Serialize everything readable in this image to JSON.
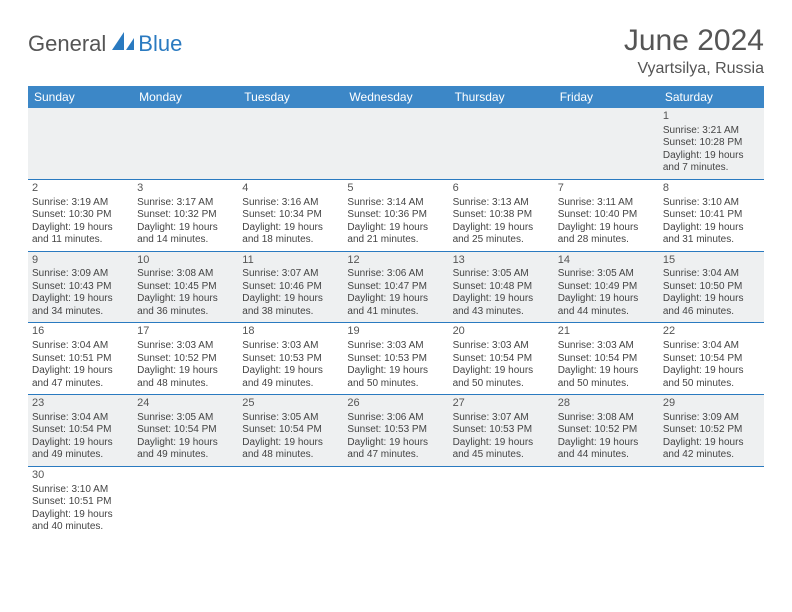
{
  "logo": {
    "text_dark": "General",
    "text_blue": "Blue"
  },
  "title": "June 2024",
  "location": "Vyartsilya, Russia",
  "colors": {
    "header_bg": "#3c87c7",
    "header_text": "#ffffff",
    "row_border": "#2a7ac0",
    "even_row_bg": "#eef0f1",
    "odd_row_bg": "#ffffff",
    "text": "#444444",
    "title_text": "#555555"
  },
  "weekdays": [
    "Sunday",
    "Monday",
    "Tuesday",
    "Wednesday",
    "Thursday",
    "Friday",
    "Saturday"
  ],
  "weeks": [
    {
      "parity": "even",
      "days": [
        null,
        null,
        null,
        null,
        null,
        null,
        {
          "n": "1",
          "sr": "Sunrise: 3:21 AM",
          "ss": "Sunset: 10:28 PM",
          "d1": "Daylight: 19 hours",
          "d2": "and 7 minutes."
        }
      ]
    },
    {
      "parity": "odd",
      "days": [
        {
          "n": "2",
          "sr": "Sunrise: 3:19 AM",
          "ss": "Sunset: 10:30 PM",
          "d1": "Daylight: 19 hours",
          "d2": "and 11 minutes."
        },
        {
          "n": "3",
          "sr": "Sunrise: 3:17 AM",
          "ss": "Sunset: 10:32 PM",
          "d1": "Daylight: 19 hours",
          "d2": "and 14 minutes."
        },
        {
          "n": "4",
          "sr": "Sunrise: 3:16 AM",
          "ss": "Sunset: 10:34 PM",
          "d1": "Daylight: 19 hours",
          "d2": "and 18 minutes."
        },
        {
          "n": "5",
          "sr": "Sunrise: 3:14 AM",
          "ss": "Sunset: 10:36 PM",
          "d1": "Daylight: 19 hours",
          "d2": "and 21 minutes."
        },
        {
          "n": "6",
          "sr": "Sunrise: 3:13 AM",
          "ss": "Sunset: 10:38 PM",
          "d1": "Daylight: 19 hours",
          "d2": "and 25 minutes."
        },
        {
          "n": "7",
          "sr": "Sunrise: 3:11 AM",
          "ss": "Sunset: 10:40 PM",
          "d1": "Daylight: 19 hours",
          "d2": "and 28 minutes."
        },
        {
          "n": "8",
          "sr": "Sunrise: 3:10 AM",
          "ss": "Sunset: 10:41 PM",
          "d1": "Daylight: 19 hours",
          "d2": "and 31 minutes."
        }
      ]
    },
    {
      "parity": "even",
      "days": [
        {
          "n": "9",
          "sr": "Sunrise: 3:09 AM",
          "ss": "Sunset: 10:43 PM",
          "d1": "Daylight: 19 hours",
          "d2": "and 34 minutes."
        },
        {
          "n": "10",
          "sr": "Sunrise: 3:08 AM",
          "ss": "Sunset: 10:45 PM",
          "d1": "Daylight: 19 hours",
          "d2": "and 36 minutes."
        },
        {
          "n": "11",
          "sr": "Sunrise: 3:07 AM",
          "ss": "Sunset: 10:46 PM",
          "d1": "Daylight: 19 hours",
          "d2": "and 38 minutes."
        },
        {
          "n": "12",
          "sr": "Sunrise: 3:06 AM",
          "ss": "Sunset: 10:47 PM",
          "d1": "Daylight: 19 hours",
          "d2": "and 41 minutes."
        },
        {
          "n": "13",
          "sr": "Sunrise: 3:05 AM",
          "ss": "Sunset: 10:48 PM",
          "d1": "Daylight: 19 hours",
          "d2": "and 43 minutes."
        },
        {
          "n": "14",
          "sr": "Sunrise: 3:05 AM",
          "ss": "Sunset: 10:49 PM",
          "d1": "Daylight: 19 hours",
          "d2": "and 44 minutes."
        },
        {
          "n": "15",
          "sr": "Sunrise: 3:04 AM",
          "ss": "Sunset: 10:50 PM",
          "d1": "Daylight: 19 hours",
          "d2": "and 46 minutes."
        }
      ]
    },
    {
      "parity": "odd",
      "days": [
        {
          "n": "16",
          "sr": "Sunrise: 3:04 AM",
          "ss": "Sunset: 10:51 PM",
          "d1": "Daylight: 19 hours",
          "d2": "and 47 minutes."
        },
        {
          "n": "17",
          "sr": "Sunrise: 3:03 AM",
          "ss": "Sunset: 10:52 PM",
          "d1": "Daylight: 19 hours",
          "d2": "and 48 minutes."
        },
        {
          "n": "18",
          "sr": "Sunrise: 3:03 AM",
          "ss": "Sunset: 10:53 PM",
          "d1": "Daylight: 19 hours",
          "d2": "and 49 minutes."
        },
        {
          "n": "19",
          "sr": "Sunrise: 3:03 AM",
          "ss": "Sunset: 10:53 PM",
          "d1": "Daylight: 19 hours",
          "d2": "and 50 minutes."
        },
        {
          "n": "20",
          "sr": "Sunrise: 3:03 AM",
          "ss": "Sunset: 10:54 PM",
          "d1": "Daylight: 19 hours",
          "d2": "and 50 minutes."
        },
        {
          "n": "21",
          "sr": "Sunrise: 3:03 AM",
          "ss": "Sunset: 10:54 PM",
          "d1": "Daylight: 19 hours",
          "d2": "and 50 minutes."
        },
        {
          "n": "22",
          "sr": "Sunrise: 3:04 AM",
          "ss": "Sunset: 10:54 PM",
          "d1": "Daylight: 19 hours",
          "d2": "and 50 minutes."
        }
      ]
    },
    {
      "parity": "even",
      "days": [
        {
          "n": "23",
          "sr": "Sunrise: 3:04 AM",
          "ss": "Sunset: 10:54 PM",
          "d1": "Daylight: 19 hours",
          "d2": "and 49 minutes."
        },
        {
          "n": "24",
          "sr": "Sunrise: 3:05 AM",
          "ss": "Sunset: 10:54 PM",
          "d1": "Daylight: 19 hours",
          "d2": "and 49 minutes."
        },
        {
          "n": "25",
          "sr": "Sunrise: 3:05 AM",
          "ss": "Sunset: 10:54 PM",
          "d1": "Daylight: 19 hours",
          "d2": "and 48 minutes."
        },
        {
          "n": "26",
          "sr": "Sunrise: 3:06 AM",
          "ss": "Sunset: 10:53 PM",
          "d1": "Daylight: 19 hours",
          "d2": "and 47 minutes."
        },
        {
          "n": "27",
          "sr": "Sunrise: 3:07 AM",
          "ss": "Sunset: 10:53 PM",
          "d1": "Daylight: 19 hours",
          "d2": "and 45 minutes."
        },
        {
          "n": "28",
          "sr": "Sunrise: 3:08 AM",
          "ss": "Sunset: 10:52 PM",
          "d1": "Daylight: 19 hours",
          "d2": "and 44 minutes."
        },
        {
          "n": "29",
          "sr": "Sunrise: 3:09 AM",
          "ss": "Sunset: 10:52 PM",
          "d1": "Daylight: 19 hours",
          "d2": "and 42 minutes."
        }
      ]
    },
    {
      "parity": "odd",
      "last": true,
      "days": [
        {
          "n": "30",
          "sr": "Sunrise: 3:10 AM",
          "ss": "Sunset: 10:51 PM",
          "d1": "Daylight: 19 hours",
          "d2": "and 40 minutes."
        },
        null,
        null,
        null,
        null,
        null,
        null
      ]
    }
  ]
}
